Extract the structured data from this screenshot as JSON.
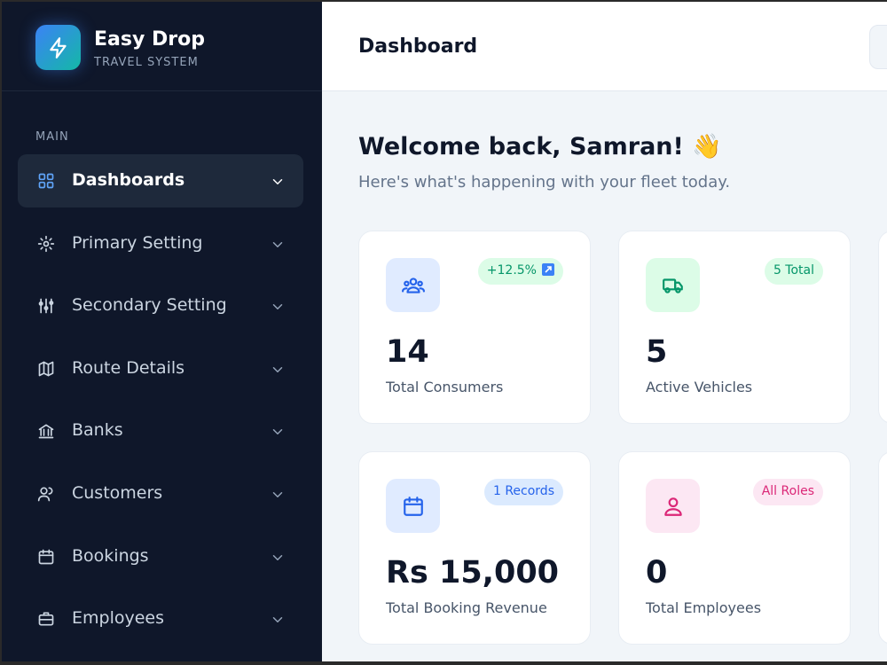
{
  "sidebar": {
    "brand": {
      "name": "Easy Drop",
      "subtitle": "TRAVEL SYSTEM"
    },
    "section": "MAIN",
    "nav": [
      "Dashboards",
      "Primary Setting",
      "Secondary Setting",
      "Route Details",
      "Banks",
      "Customers",
      "Bookings",
      "Employees"
    ]
  },
  "header": {
    "title": "Dashboard"
  },
  "welcome": {
    "title": "Welcome back, Samran! 👋",
    "subtitle": "Here's what's happening with your fleet today."
  },
  "cards": [
    {
      "value": "14",
      "label": "Total Consumers",
      "badge": "+12.5%"
    },
    {
      "value": "5",
      "label": "Active Vehicles",
      "badge": "5 Total"
    },
    {
      "value": "Rs 15,000",
      "label": "Total Booking Revenue",
      "badge": "1 Records"
    },
    {
      "value": "0",
      "label": "Total Employees",
      "badge": "All Roles"
    }
  ]
}
